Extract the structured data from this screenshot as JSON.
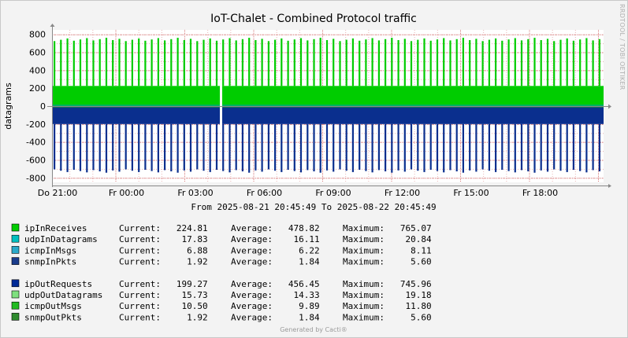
{
  "chart_data": {
    "type": "area",
    "title": "IoT-Chalet - Combined Protocol traffic",
    "ylabel": "datagrams",
    "ylim": [
      -850,
      850
    ],
    "yticks": [
      800,
      600,
      400,
      200,
      0,
      -200,
      -400,
      -600,
      -800
    ],
    "x_labels": [
      "Do 21:00",
      "Fr 00:00",
      "Fr 03:00",
      "Fr 06:00",
      "Fr 09:00",
      "Fr 12:00",
      "Fr 15:00",
      "Fr 18:00"
    ],
    "range_text": "From 2025-08-21 20:45:49 To 2025-08-22 20:45:49",
    "grid": true,
    "series_approx": {
      "in_band_top": 225,
      "in_band_top_alt": 180,
      "in_spike_max": 765,
      "out_band_bottom": -200,
      "out_spike_min": -746,
      "spike_count": 85
    },
    "legend_groups": [
      [
        {
          "name": "ipInReceives",
          "color": "#00cc00",
          "current": "224.81",
          "average": "478.82",
          "maximum": "765.07"
        },
        {
          "name": "udpInDatagrams",
          "color": "#00bfbf",
          "current": "17.83",
          "average": "16.11",
          "maximum": "20.84"
        },
        {
          "name": "icmpInMsgs",
          "color": "#2aa9c9",
          "current": "6.88",
          "average": "6.22",
          "maximum": "8.11"
        },
        {
          "name": "snmpInPkts",
          "color": "#1a3c8c",
          "current": "1.92",
          "average": "1.84",
          "maximum": "5.60"
        }
      ],
      [
        {
          "name": "ipOutRequests",
          "color": "#002a97",
          "current": "199.27",
          "average": "456.45",
          "maximum": "745.96"
        },
        {
          "name": "udpOutDatagrams",
          "color": "#7fe07f",
          "current": "15.73",
          "average": "14.33",
          "maximum": "19.18"
        },
        {
          "name": "icmpOutMsgs",
          "color": "#22bb22",
          "current": "10.50",
          "average": "9.89",
          "maximum": "11.80"
        },
        {
          "name": "snmpOutPkts",
          "color": "#2e8b2e",
          "current": "1.92",
          "average": "1.84",
          "maximum": "5.60"
        }
      ]
    ],
    "legend_text": {
      "current": "Current:",
      "average": "Average:",
      "maximum": "Maximum:"
    },
    "colors": {
      "in_fill": "#00cc00",
      "out_fill": "#0a2f8e",
      "baseline": "#00a0a0",
      "grid_minor": "#e8b4b4",
      "grid_major": "#d67878"
    }
  },
  "side_text": "RRDTOOL / TOBI OETIKER",
  "footer": "Generated by Cacti®"
}
